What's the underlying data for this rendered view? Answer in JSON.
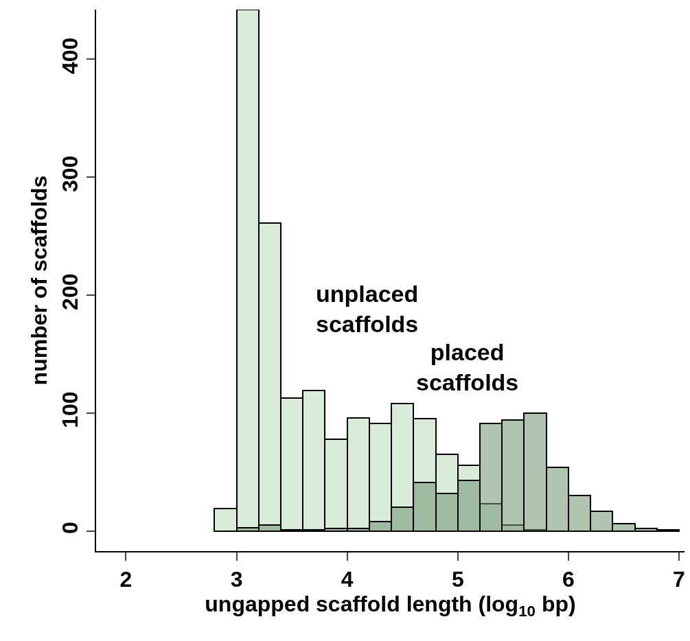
{
  "chart_data": {
    "type": "histogram",
    "xlabel": "ungapped scaffold length (log$_{10}$ bp)",
    "ylabel": "number of scaffolds",
    "bins": [
      2.8,
      3.0,
      3.2,
      3.4,
      3.6,
      3.8,
      4.0,
      4.2,
      4.4,
      4.6,
      4.8,
      5.0,
      5.2,
      5.4,
      5.6,
      5.8,
      6.0,
      6.2,
      6.4,
      6.6,
      6.8,
      7.0
    ],
    "series": [
      {
        "color": "#d9ecd9",
        "values": [
          19,
          442,
          261,
          113,
          119,
          78,
          96,
          91,
          108,
          95,
          65,
          56,
          23,
          5,
          1,
          null,
          null,
          null,
          null,
          null,
          null
        ]
      },
      {
        "color": "#b0c4b0",
        "values": [
          null,
          3,
          5,
          1,
          1,
          2,
          2,
          8,
          20,
          41,
          32,
          43,
          91,
          94,
          100,
          54,
          30,
          17,
          6,
          2,
          1
        ]
      }
    ],
    "annotations": [
      "unplaced\nscaffolds",
      "placed\nscaffolds"
    ],
    "xlim": [
      1.73,
      7.05
    ],
    "ylim": [
      -17,
      442
    ],
    "xticks": [
      2,
      3,
      4,
      5,
      6,
      7
    ],
    "yticks": [
      0,
      100,
      200,
      300,
      400
    ]
  }
}
